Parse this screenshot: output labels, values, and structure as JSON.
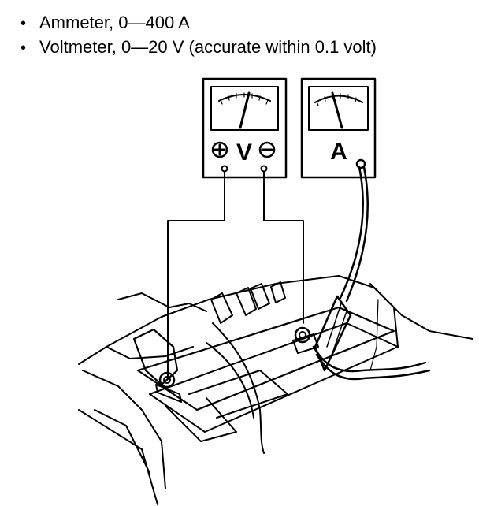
{
  "specs": [
    {
      "bullet": "•",
      "text": "Ammeter, 0—400 A"
    },
    {
      "bullet": "•",
      "text": "Voltmeter, 0—20 V (accurate within 0.1 volt)"
    }
  ],
  "voltmeter": {
    "label": "V",
    "positive_symbol": "+",
    "negative_symbol": "−"
  },
  "ammeter": {
    "label": "A"
  }
}
